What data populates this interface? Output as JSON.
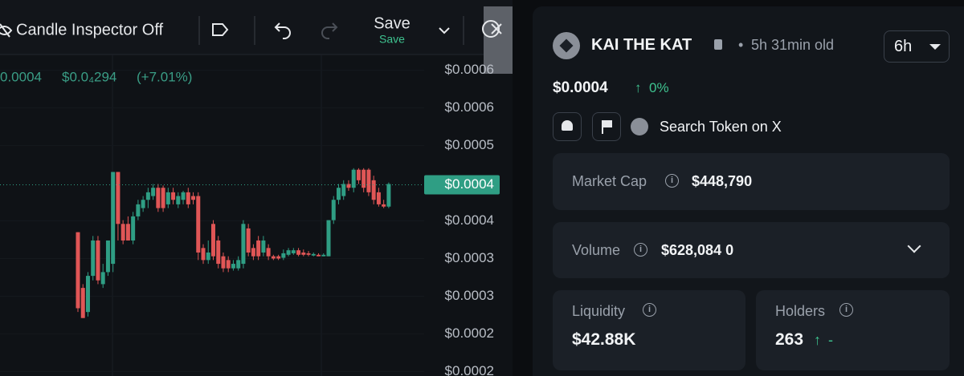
{
  "toolbar": {
    "candle_inspector": "Candle Inspector Off",
    "save": "Save",
    "save_status": "Save"
  },
  "chart_data": {
    "type": "candlestick",
    "ohlc_legend": [
      "0.0004",
      "$0.0₄294",
      "(+7.01%)"
    ],
    "up_color": "#2f9e84",
    "down_color": "#e05656",
    "open": [
      0.000385,
      0.000311,
      0.000279,
      0.000327,
      0.000374,
      0.000316,
      0.000332,
      0.000343,
      0.000465,
      0.000396,
      0.000396,
      0.000374,
      0.000406,
      0.000417,
      0.000428,
      0.000433,
      0.000444,
      0.000444,
      0.000422,
      0.000438,
      0.000422,
      0.000428,
      0.000438,
      0.000433,
      0.000433,
      0.000364,
      0.000348,
      0.000396,
      0.000374,
      0.000353,
      0.000348,
      0.000337,
      0.000337,
      0.000343,
      0.00039,
      0.000364,
      0.000374,
      0.000358,
      0.000364,
      0.000353,
      0.000353,
      0.000351,
      0.000355,
      0.000357,
      0.000361,
      0.000358,
      0.000357,
      0.000354,
      0.000355,
      0.000353,
      0.000353,
      0.000401,
      0.000428,
      0.000433,
      0.000449,
      0.000444,
      0.000468,
      0.000468,
      0.000468,
      0.000454,
      0.000438,
      0.000422,
      0.000419
    ],
    "high": [
      0.000385,
      0.000316,
      0.000332,
      0.00038,
      0.00038,
      0.000343,
      0.000374,
      0.000465,
      0.000465,
      0.000401,
      0.000406,
      0.000412,
      0.000428,
      0.000433,
      0.000444,
      0.000449,
      0.000449,
      0.000447,
      0.000444,
      0.000444,
      0.000438,
      0.00044,
      0.000444,
      0.000438,
      0.000438,
      0.000369,
      0.000374,
      0.000401,
      0.00038,
      0.000358,
      0.000353,
      0.000348,
      0.000353,
      0.000401,
      0.000396,
      0.000369,
      0.00038,
      0.00038,
      0.000369,
      0.000355,
      0.000355,
      0.000362,
      0.000364,
      0.000364,
      0.000364,
      0.000362,
      0.00036,
      0.000358,
      0.000357,
      0.000357,
      0.000401,
      0.000433,
      0.000449,
      0.000454,
      0.000454,
      0.00047,
      0.00047,
      0.00047,
      0.00047,
      0.00046,
      0.000444,
      0.000428,
      0.000451
    ],
    "low": [
      0.000279,
      0.000271,
      0.000273,
      0.000321,
      0.000316,
      0.000311,
      0.000327,
      0.000332,
      0.000374,
      0.000369,
      0.000374,
      0.000369,
      0.000401,
      0.000412,
      0.000417,
      0.000428,
      0.000412,
      0.000412,
      0.000417,
      0.000422,
      0.000417,
      0.000422,
      0.000417,
      0.000422,
      0.000348,
      0.000343,
      0.000343,
      0.000348,
      0.000337,
      0.000332,
      0.000332,
      0.000334,
      0.000334,
      0.000337,
      0.000353,
      0.000348,
      0.000348,
      0.000353,
      0.000348,
      0.000348,
      0.000348,
      0.000348,
      0.000353,
      0.000355,
      0.000353,
      0.000353,
      0.000353,
      0.000353,
      0.000353,
      0.000353,
      0.000353,
      0.000396,
      0.000422,
      0.000428,
      0.00044,
      0.000438,
      0.000449,
      0.000438,
      0.000433,
      0.000422,
      0.000419,
      0.000417,
      0.000417
    ],
    "close": [
      0.000284,
      0.000271,
      0.000327,
      0.000374,
      0.000321,
      0.000332,
      0.000374,
      0.000465,
      0.000396,
      0.000374,
      0.000374,
      0.000406,
      0.000422,
      0.000428,
      0.000438,
      0.000444,
      0.000417,
      0.000417,
      0.000438,
      0.000428,
      0.000433,
      0.000438,
      0.000422,
      0.000428,
      0.000358,
      0.000348,
      0.000358,
      0.000353,
      0.000343,
      0.000337,
      0.000337,
      0.000343,
      0.000348,
      0.000396,
      0.000358,
      0.000353,
      0.000353,
      0.000374,
      0.000353,
      0.00035,
      0.00035,
      0.000357,
      0.000361,
      0.000361,
      0.000355,
      0.000355,
      0.000355,
      0.000356,
      0.000353,
      0.000355,
      0.000401,
      0.000428,
      0.000444,
      0.000449,
      0.000444,
      0.000468,
      0.000454,
      0.000444,
      0.000438,
      0.000428,
      0.000422,
      0.000419,
      0.000449
    ],
    "ylim": [
      0.000194,
      0.000621
    ],
    "yticks": [
      {
        "value": 0.0006,
        "label": "$0.0006"
      },
      {
        "value": 0.00055,
        "label": "$0.0006"
      },
      {
        "value": 0.0005,
        "label": "$0.0005"
      },
      {
        "value": 0.0004,
        "label": "$0.0004"
      },
      {
        "value": 0.00035,
        "label": "$0.0003"
      },
      {
        "value": 0.0003,
        "label": "$0.0003"
      },
      {
        "value": 0.00025,
        "label": "$0.0002"
      },
      {
        "value": 0.0002,
        "label": "$0.0002"
      }
    ],
    "current_price": {
      "value": 0.000448,
      "label": "$0.0004"
    }
  },
  "token": {
    "name": "KAI THE KAT",
    "age": "5h 31min old",
    "timeframe": "6h",
    "price": "$0.0004",
    "change": "0%",
    "search": "Search Token on X"
  },
  "stats": {
    "market_cap": {
      "label": "Market Cap",
      "value": "$448,790"
    },
    "volume": {
      "label": "Volume",
      "value": "$628,084 0"
    },
    "liquidity": {
      "label": "Liquidity",
      "value": "$42.88K"
    },
    "holders": {
      "label": "Holders",
      "value": "263",
      "change": "-"
    }
  }
}
